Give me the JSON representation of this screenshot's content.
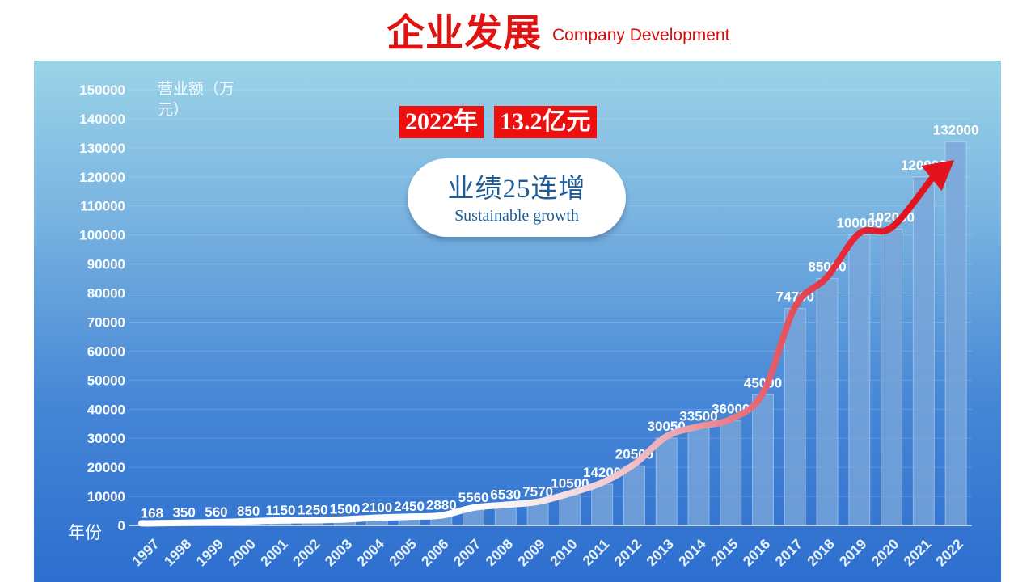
{
  "header": {
    "title": "企业发展",
    "subtitle": "Company Development"
  },
  "badges": {
    "year": "2022年",
    "amount": "13.2亿元"
  },
  "bubble": {
    "line1": "业绩25连增",
    "line2": "Sustainable growth"
  },
  "chart_data": {
    "type": "bar",
    "title": "企业发展 Company Development",
    "xlabel": "年份",
    "ylabel": "营业额（万元）",
    "ylabel_lines": [
      "营业额（万",
      "元）"
    ],
    "categories": [
      "1997",
      "1998",
      "1999",
      "2000",
      "2001",
      "2002",
      "2003",
      "2004",
      "2005",
      "2006",
      "2007",
      "2008",
      "2009",
      "2010",
      "2011",
      "2012",
      "2013",
      "2014",
      "2015",
      "2016",
      "2017",
      "2018",
      "2019",
      "2020",
      "2021",
      "2022"
    ],
    "values": [
      168,
      350,
      560,
      850,
      1150,
      1250,
      1500,
      2100,
      2450,
      2880,
      5560,
      6530,
      7570,
      10500,
      14200,
      20500,
      30050,
      33500,
      36000,
      45000,
      74700,
      85000,
      100000,
      102000,
      120000,
      132000
    ],
    "ylim": [
      0,
      150000
    ],
    "y_ticks": [
      0,
      10000,
      20000,
      30000,
      40000,
      50000,
      60000,
      70000,
      80000,
      90000,
      100000,
      110000,
      120000,
      130000,
      140000,
      150000
    ],
    "grid": "horizontal",
    "legend": "none",
    "overlay": "smoothed trend line from white to red ending in red up-right arrow",
    "annotations": [
      "2022年",
      "13.2亿元",
      "业绩25连增",
      "Sustainable growth"
    ]
  },
  "colors": {
    "title_red": "#e01212",
    "badge_red": "#ee0f0f",
    "bubble_text_blue": "#1d5c99",
    "panel_gradient_top": "#9bd3e8",
    "panel_gradient_bottom": "#2d6ecf",
    "bar_fill": "#7aa6da",
    "bar_edge": "#cde4f8",
    "label_white": "#ffffff",
    "grid_white": "#ffffff",
    "arrow_red": "#e3121f",
    "line_start": "#ffffff"
  }
}
